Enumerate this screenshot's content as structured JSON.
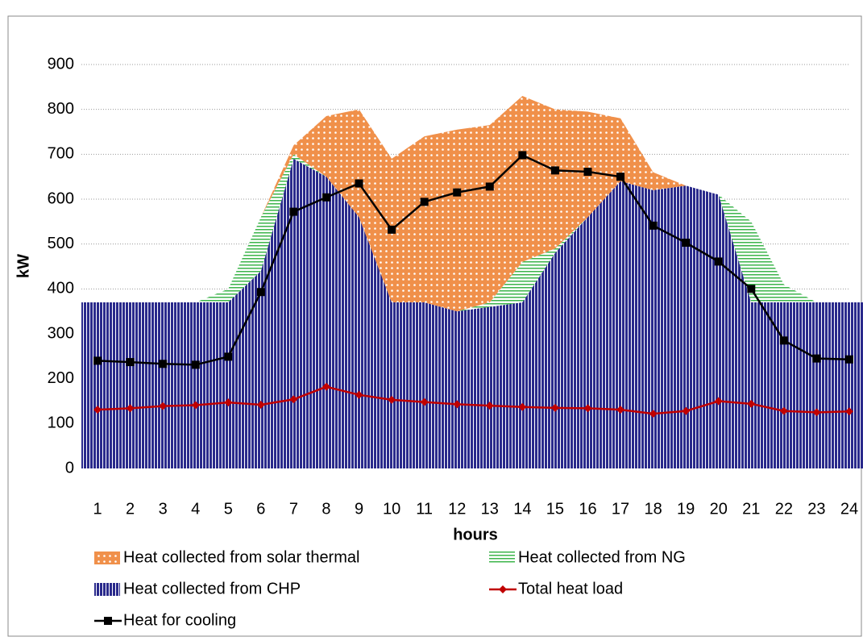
{
  "chart_data": {
    "type": "area",
    "y_label": "kW",
    "x_label": "hours",
    "categories": [
      "1",
      "2",
      "3",
      "4",
      "5",
      "6",
      "7",
      "8",
      "9",
      "10",
      "11",
      "12",
      "13",
      "14",
      "15",
      "16",
      "17",
      "18",
      "19",
      "20",
      "21",
      "22",
      "23",
      "24"
    ],
    "ylim": [
      0,
      900
    ],
    "yticks": [
      0,
      100,
      200,
      300,
      400,
      500,
      600,
      700,
      800,
      900
    ],
    "grid": true,
    "series": [
      {
        "name": "Heat collected from CHP",
        "type": "area",
        "pattern": "vertical",
        "color": "#2a2a8c",
        "values": [
          370,
          370,
          370,
          370,
          370,
          440,
          690,
          650,
          560,
          370,
          370,
          350,
          360,
          370,
          480,
          560,
          640,
          620,
          630,
          610,
          370,
          370,
          370,
          370
        ]
      },
      {
        "name": "Heat collected from NG",
        "type": "area",
        "pattern": "horizontal",
        "color": "#3cb44b",
        "values": [
          0,
          0,
          0,
          0,
          30,
          120,
          10,
          0,
          0,
          0,
          0,
          0,
          10,
          90,
          10,
          0,
          0,
          0,
          0,
          0,
          180,
          40,
          0,
          0
        ]
      },
      {
        "name": "Heat collected from solar thermal",
        "type": "area",
        "pattern": "dots",
        "color": "#f0904a",
        "values": [
          0,
          0,
          0,
          0,
          0,
          0,
          20,
          135,
          240,
          320,
          370,
          405,
          395,
          370,
          310,
          235,
          140,
          40,
          0,
          0,
          0,
          0,
          0,
          0
        ]
      },
      {
        "name": "Total heat load",
        "type": "line",
        "marker": "diamond",
        "color": "#c00000",
        "values": [
          131,
          134,
          139,
          141,
          147,
          142,
          154,
          182,
          164,
          153,
          148,
          143,
          140,
          137,
          135,
          134,
          131,
          122,
          128,
          150,
          144,
          128,
          125,
          127
        ]
      },
      {
        "name": "Heat for cooling",
        "type": "line",
        "marker": "square",
        "color": "#000000",
        "values": [
          240,
          237,
          233,
          231,
          249,
          393,
          572,
          604,
          635,
          532,
          594,
          615,
          628,
          698,
          664,
          661,
          650,
          541,
          503,
          461,
          400,
          285,
          245,
          243
        ]
      }
    ]
  }
}
